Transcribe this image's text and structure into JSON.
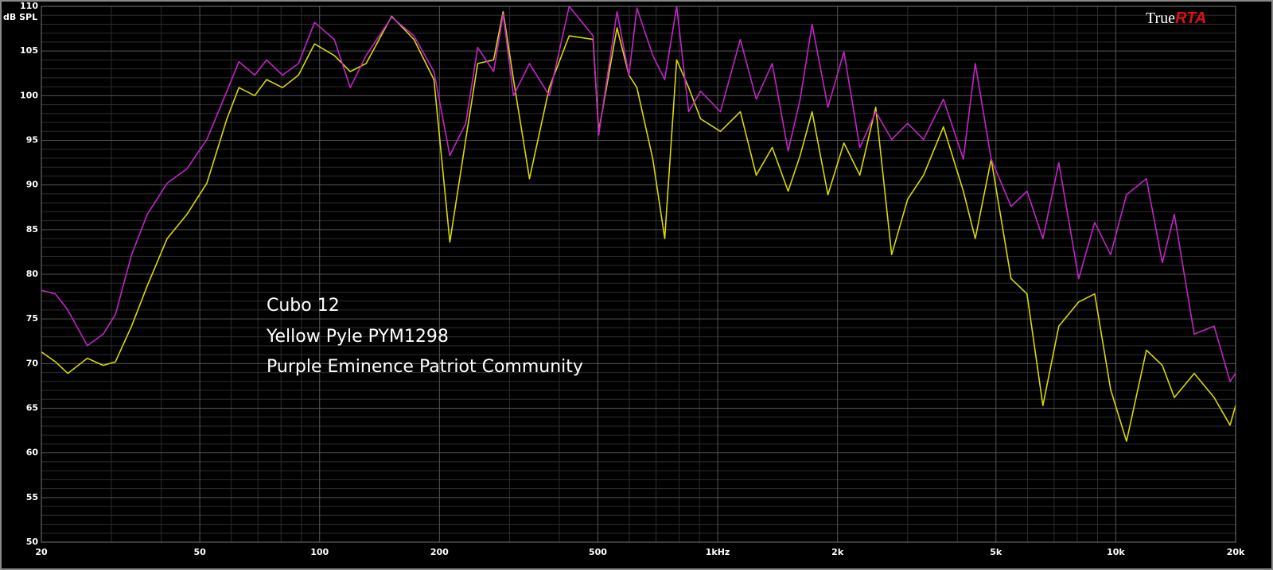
{
  "chart_data": {
    "type": "line",
    "ylabel": "dB SPL",
    "brand": {
      "prefix": "True",
      "suffix": "RTA"
    },
    "annotations": [
      "Cubo 12",
      "Yellow Pyle PYM1298",
      "Purple Eminence Patriot Community"
    ],
    "x": [
      20,
      21.7,
      23.3,
      26.1,
      28.6,
      30.7,
      33.7,
      36.9,
      41.4,
      46.4,
      52.1,
      58.5,
      62.7,
      68.7,
      73.6,
      80.7,
      88.5,
      97.1,
      108.9,
      119.4,
      130.9,
      151.7,
      172.6,
      193.7,
      212.4,
      232.9,
      249.5,
      273.6,
      289.1,
      307,
      336.6,
      377.6,
      423.6,
      486.4,
      502.4,
      558.6,
      598.4,
      626.6,
      687.2,
      736.3,
      788.9,
      845.5,
      905.8,
      1016,
      1140,
      1250,
      1371,
      1503,
      1611,
      1726,
      1892,
      2075,
      2275,
      2495,
      2735,
      3000,
      3289,
      3690,
      4140,
      4437,
      4864,
      5458,
      5984,
      6561,
      7194,
      8072,
      8851,
      9705,
      10640,
      11940,
      13090,
      14030,
      15740,
      17660,
      19370,
      20000
    ],
    "series": [
      {
        "color": "#d8d800",
        "values": [
          71.3,
          70.2,
          68.9,
          70.6,
          69.8,
          70.2,
          74.2,
          78.7,
          84.0,
          86.7,
          90.2,
          97.4,
          100.9,
          100.0,
          101.8,
          100.9,
          102.3,
          105.8,
          104.5,
          102.7,
          103.6,
          108.9,
          106.3,
          101.8,
          83.6,
          95.1,
          103.6,
          104.0,
          109.4,
          101.8,
          90.7,
          100.9,
          106.7,
          106.3,
          96.0,
          107.6,
          102.3,
          100.9,
          92.9,
          84.0,
          104.0,
          100.9,
          97.4,
          96.0,
          98.2,
          91.1,
          94.2,
          89.3,
          93.3,
          98.2,
          88.9,
          94.7,
          91.1,
          98.7,
          82.2,
          88.4,
          91.1,
          96.5,
          89.3,
          84.0,
          92.9,
          79.5,
          77.8,
          65.3,
          74.2,
          76.9,
          77.8,
          67.1,
          61.3,
          71.5,
          69.8,
          66.2,
          68.9,
          66.2,
          63.1,
          65.3
        ]
      },
      {
        "color": "#c224c8",
        "values": [
          78.2,
          77.8,
          76.0,
          72.0,
          73.3,
          75.5,
          82.2,
          86.7,
          90.2,
          91.8,
          95.1,
          100.5,
          103.8,
          102.3,
          104.0,
          102.3,
          103.6,
          108.2,
          106.3,
          100.9,
          104.5,
          108.8,
          106.7,
          102.7,
          93.3,
          96.9,
          105.4,
          102.7,
          109.1,
          100.0,
          103.6,
          100.0,
          110.0,
          106.7,
          95.6,
          109.4,
          102.3,
          109.8,
          104.5,
          101.8,
          110.0,
          98.2,
          100.5,
          98.2,
          106.3,
          99.6,
          103.6,
          93.8,
          99.6,
          108.0,
          98.7,
          104.9,
          94.2,
          98.2,
          95.1,
          96.9,
          95.1,
          99.6,
          92.9,
          103.6,
          92.9,
          87.6,
          89.3,
          84.0,
          92.5,
          79.5,
          85.8,
          82.2,
          88.9,
          90.7,
          81.3,
          86.7,
          73.3,
          74.2,
          68.0,
          68.9
        ]
      }
    ],
    "log_x": true,
    "xlim": [
      20,
      20000
    ],
    "xticks": [
      20,
      50,
      100,
      200,
      500,
      {
        "value": 1000,
        "label": "1kHz"
      },
      {
        "value": 2000,
        "label": "2k"
      },
      {
        "value": 5000,
        "label": "5k"
      },
      {
        "value": 10000,
        "label": "10k"
      },
      {
        "value": 20000,
        "label": "20k"
      }
    ],
    "xminorticks": [
      30,
      40,
      60,
      70,
      80,
      90,
      300,
      400,
      600,
      700,
      800,
      900,
      3000,
      4000,
      6000,
      7000,
      8000,
      9000
    ],
    "ylim": [
      50,
      110
    ],
    "yticks": [
      50,
      55,
      60,
      65,
      70,
      75,
      80,
      85,
      90,
      95,
      100,
      105,
      110
    ],
    "yminorticks": [
      51,
      52,
      53,
      54,
      56,
      57,
      58,
      59,
      61,
      62,
      63,
      64,
      66,
      67,
      68,
      69,
      71,
      72,
      73,
      74,
      76,
      77,
      78,
      79,
      81,
      82,
      83,
      84,
      86,
      87,
      88,
      89,
      91,
      92,
      93,
      94,
      96,
      97,
      98,
      99,
      101,
      102,
      103,
      104,
      106,
      107,
      108,
      109
    ],
    "grid": true
  }
}
